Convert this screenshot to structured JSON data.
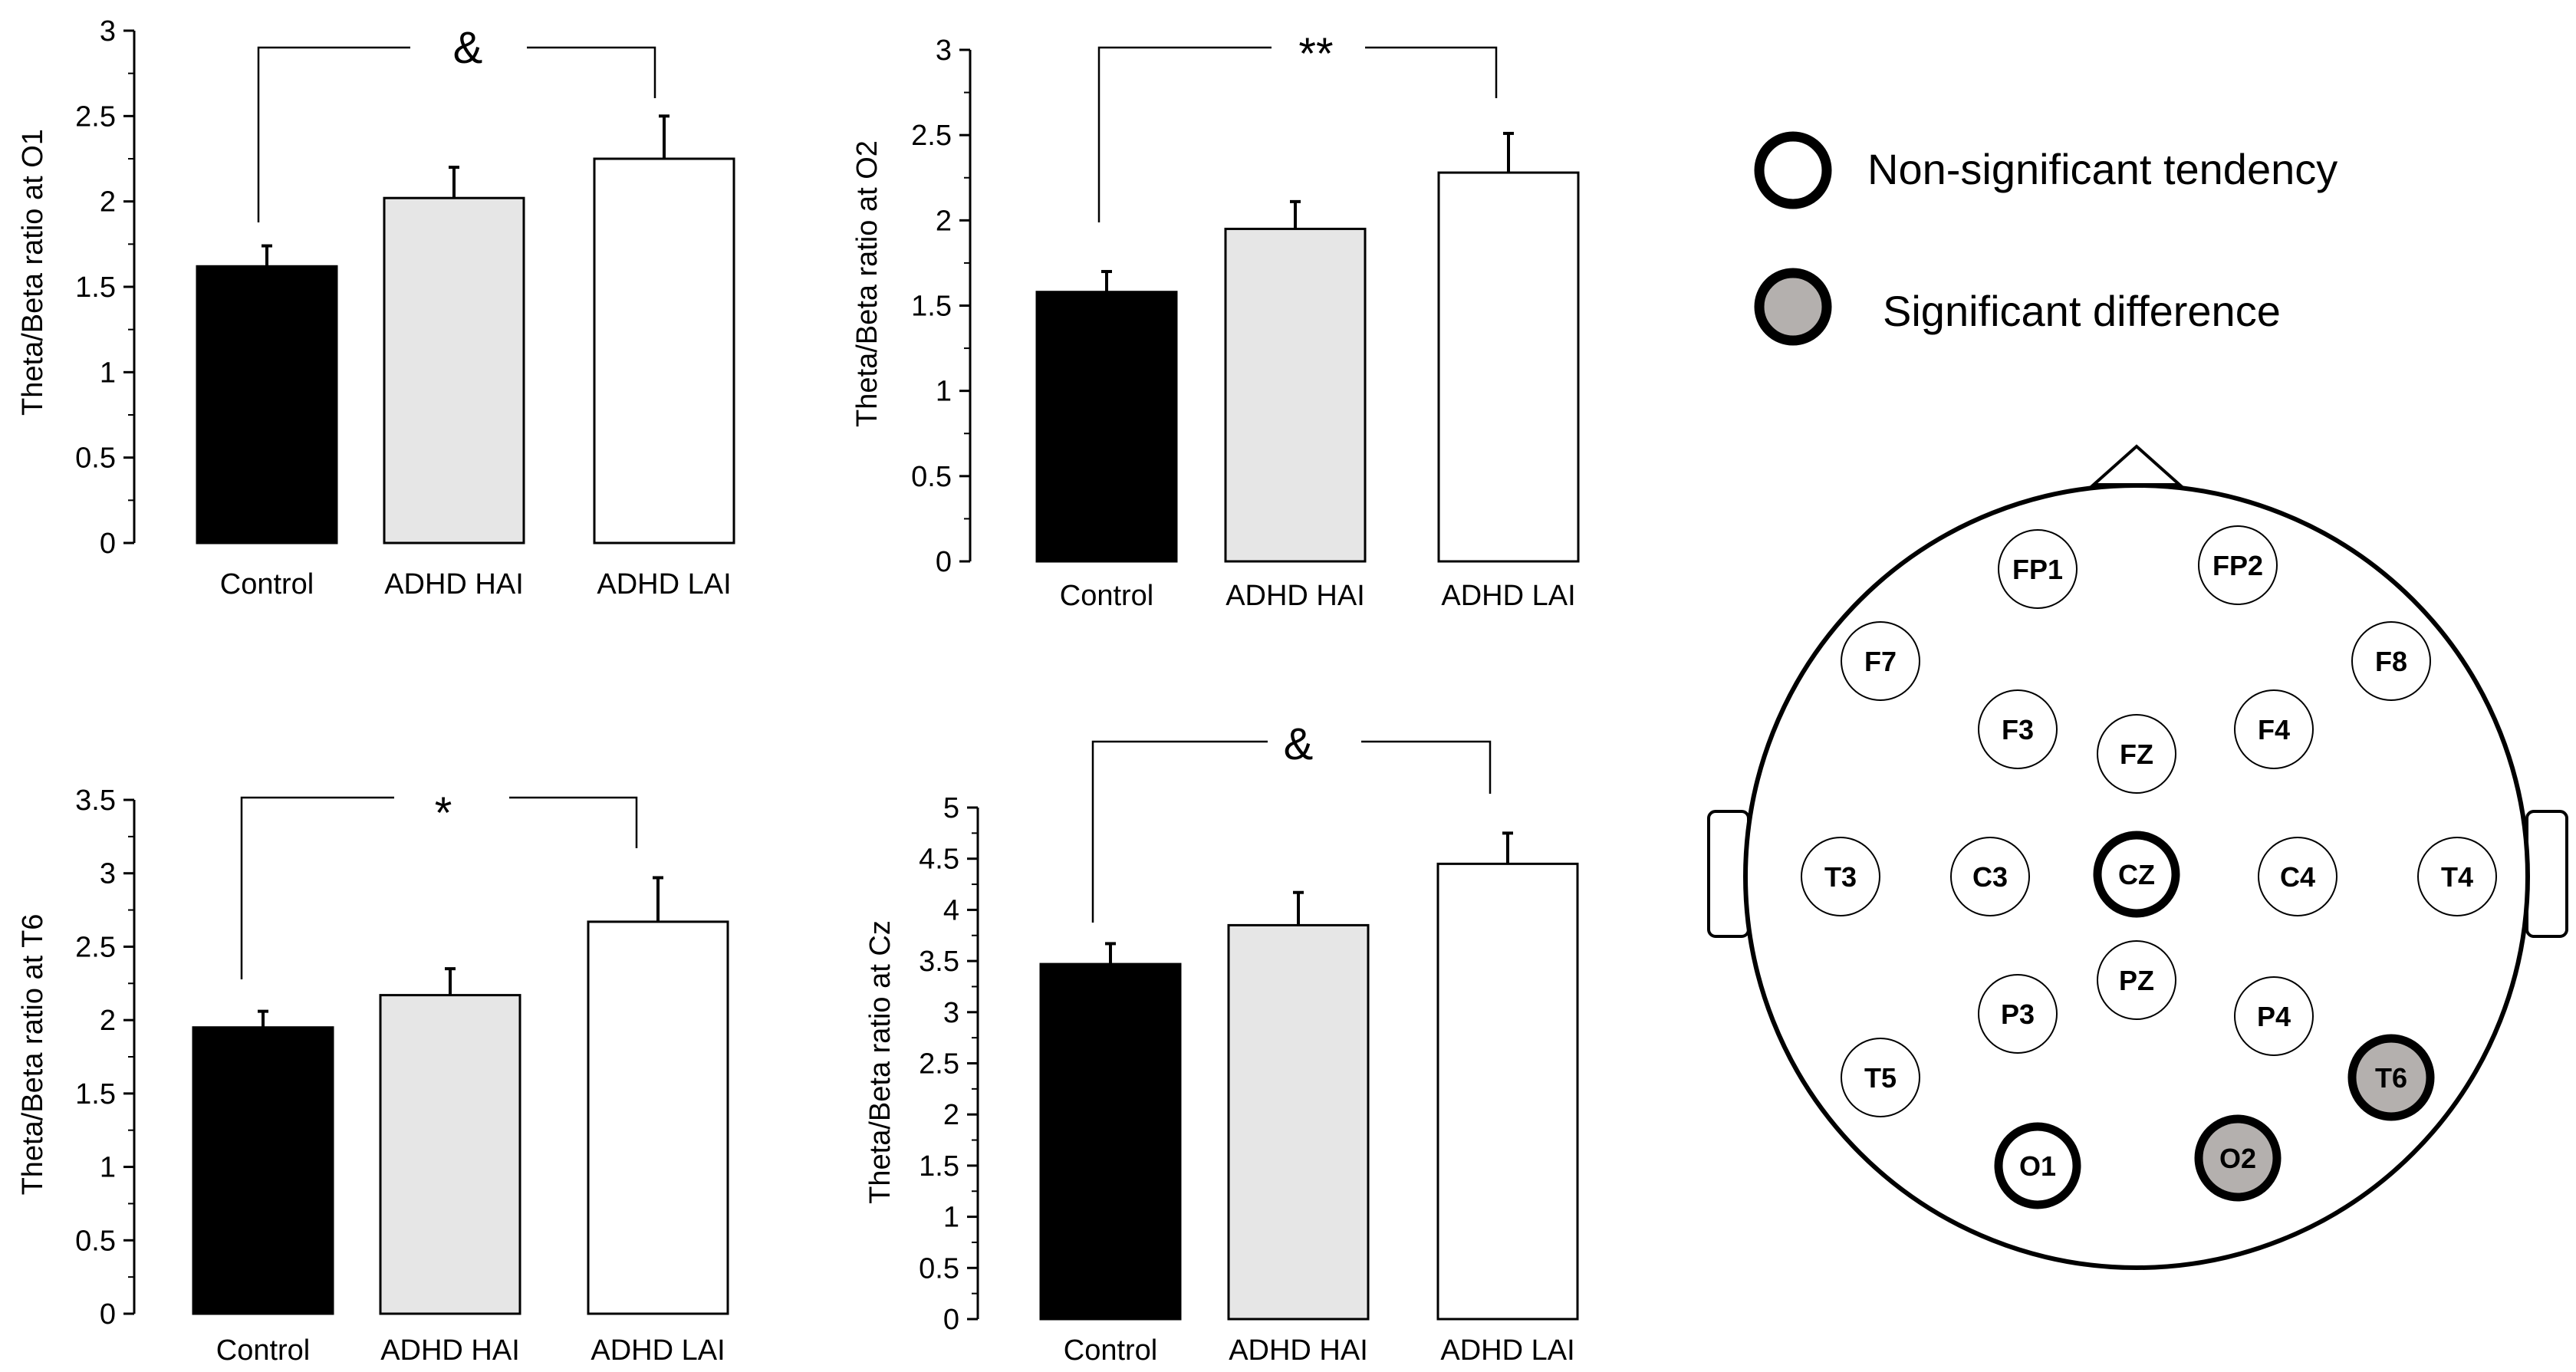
{
  "chart_data": [
    {
      "type": "bar",
      "ylabel": "Theta/Beta ratio at O1",
      "categories": [
        "Control",
        "ADHD HAI",
        "ADHD LAI"
      ],
      "values": [
        1.62,
        2.02,
        2.25
      ],
      "errors": [
        0.12,
        0.18,
        0.25
      ],
      "colors": [
        "#000000",
        "#e6e6e6",
        "#ffffff"
      ],
      "ylim": [
        0,
        3
      ],
      "yticks": [
        "0",
        "0.5",
        "1",
        "1.5",
        "2",
        "2.5",
        "3"
      ],
      "significance": "&"
    },
    {
      "type": "bar",
      "ylabel": "Theta/Beta ratio at O2",
      "categories": [
        "Control",
        "ADHD HAI",
        "ADHD LAI"
      ],
      "values": [
        1.58,
        1.95,
        2.28
      ],
      "errors": [
        0.12,
        0.16,
        0.23
      ],
      "colors": [
        "#000000",
        "#e6e6e6",
        "#ffffff"
      ],
      "ylim": [
        0,
        3
      ],
      "yticks": [
        "0",
        "0.5",
        "1",
        "1.5",
        "2",
        "2.5",
        "3"
      ],
      "significance": "**"
    },
    {
      "type": "bar",
      "ylabel": "Theta/Beta ratio at T6",
      "categories": [
        "Control",
        "ADHD HAI",
        "ADHD LAI"
      ],
      "values": [
        1.95,
        2.17,
        2.67
      ],
      "errors": [
        0.11,
        0.18,
        0.3
      ],
      "colors": [
        "#000000",
        "#e6e6e6",
        "#ffffff"
      ],
      "ylim": [
        0,
        3.5
      ],
      "yticks": [
        "0",
        "0.5",
        "1",
        "1.5",
        "2",
        "2.5",
        "3",
        "3.5"
      ],
      "significance": "*"
    },
    {
      "type": "bar",
      "ylabel": "Theta/Beta ratio at Cz",
      "categories": [
        "Control",
        "ADHD HAI",
        "ADHD LAI"
      ],
      "values": [
        3.47,
        3.85,
        4.45
      ],
      "errors": [
        0.2,
        0.32,
        0.3
      ],
      "colors": [
        "#000000",
        "#e6e6e6",
        "#ffffff"
      ],
      "ylim": [
        0,
        5
      ],
      "yticks": [
        "0",
        "0.5",
        "1",
        "1.5",
        "2",
        "2.5",
        "3",
        "3.5",
        "4",
        "4.5",
        "5"
      ],
      "significance": "&"
    }
  ],
  "legend": [
    {
      "label": "Non-significant tendency",
      "fill": "#ffffff"
    },
    {
      "label": "Significant difference",
      "fill": "#b4b0ae"
    }
  ],
  "electrode_colors": {
    "normal_fill": "#ffffff",
    "significant_fill": "#b4b0ae"
  },
  "electrodes": [
    {
      "label": "FP1",
      "status": "normal"
    },
    {
      "label": "FP2",
      "status": "normal"
    },
    {
      "label": "F7",
      "status": "normal"
    },
    {
      "label": "F8",
      "status": "normal"
    },
    {
      "label": "F3",
      "status": "normal"
    },
    {
      "label": "FZ",
      "status": "normal"
    },
    {
      "label": "F4",
      "status": "normal"
    },
    {
      "label": "T3",
      "status": "normal"
    },
    {
      "label": "C3",
      "status": "normal"
    },
    {
      "label": "CZ",
      "status": "tendency"
    },
    {
      "label": "C4",
      "status": "normal"
    },
    {
      "label": "T4",
      "status": "normal"
    },
    {
      "label": "PZ",
      "status": "normal"
    },
    {
      "label": "P3",
      "status": "normal"
    },
    {
      "label": "P4",
      "status": "normal"
    },
    {
      "label": "T5",
      "status": "normal"
    },
    {
      "label": "T6",
      "status": "significant"
    },
    {
      "label": "O1",
      "status": "tendency"
    },
    {
      "label": "O2",
      "status": "significant"
    }
  ]
}
